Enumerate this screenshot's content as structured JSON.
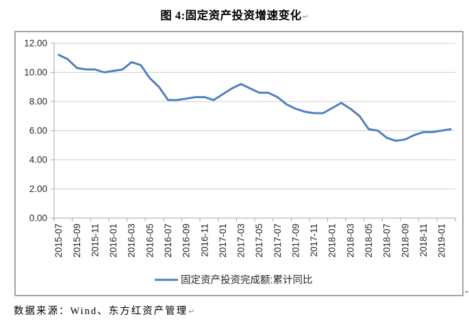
{
  "title": {
    "text": "图 4:固定资产投资增速变化",
    "paragraph_mark": "↵"
  },
  "chart_frame": {
    "paragraph_mark": "↵"
  },
  "footer": {
    "source": "数据来源：Wind、东方红资产管理",
    "paragraph_mark": "↵"
  },
  "chart_data": {
    "type": "line",
    "title": "图 4:固定资产投资增速变化",
    "xlabel": "",
    "ylabel": "",
    "ylim": [
      0,
      12
    ],
    "grid": "horizontal",
    "legend_position": "bottom",
    "x": [
      "2015-07",
      "2015-08",
      "2015-09",
      "2015-10",
      "2015-11",
      "2015-12",
      "2016-01",
      "2016-02",
      "2016-03",
      "2016-04",
      "2016-05",
      "2016-06",
      "2016-07",
      "2016-08",
      "2016-09",
      "2016-10",
      "2016-11",
      "2016-12",
      "2017-01",
      "2017-02",
      "2017-03",
      "2017-04",
      "2017-05",
      "2017-06",
      "2017-07",
      "2017-08",
      "2017-09",
      "2017-10",
      "2017-11",
      "2017-12",
      "2018-01",
      "2018-02",
      "2018-03",
      "2018-04",
      "2018-05",
      "2018-06",
      "2018-07",
      "2018-08",
      "2018-09",
      "2018-10",
      "2018-11",
      "2018-12",
      "2019-01",
      "2019-02"
    ],
    "series": [
      {
        "name": "固定资产投资完成额:累计同比",
        "color": "#4F81BD",
        "values": [
          11.2,
          10.9,
          10.3,
          10.2,
          10.2,
          10.0,
          10.1,
          10.2,
          10.7,
          10.5,
          9.6,
          9.0,
          8.1,
          8.1,
          8.2,
          8.3,
          8.3,
          8.1,
          8.5,
          8.9,
          9.2,
          8.9,
          8.6,
          8.6,
          8.3,
          7.8,
          7.5,
          7.3,
          7.2,
          7.2,
          7.55,
          7.9,
          7.5,
          7.0,
          6.1,
          6.0,
          5.5,
          5.3,
          5.4,
          5.7,
          5.9,
          5.9,
          6.0,
          6.1
        ]
      }
    ],
    "x_tick_labels": [
      "2015-07",
      "2015-09",
      "2015-11",
      "2016-01",
      "2016-03",
      "2016-05",
      "2016-07",
      "2016-09",
      "2016-11",
      "2017-01",
      "2017-03",
      "2017-05",
      "2017-07",
      "2017-09",
      "2017-11",
      "2018-01",
      "2018-03",
      "2018-05",
      "2018-07",
      "2018-09",
      "2018-11",
      "2019-01"
    ],
    "x_tick_every": 2,
    "yticks": [
      {
        "v": 0,
        "label": "0.00"
      },
      {
        "v": 2,
        "label": "2.00"
      },
      {
        "v": 4,
        "label": "4.00"
      },
      {
        "v": 6,
        "label": "6.00"
      },
      {
        "v": 8,
        "label": "8.00"
      },
      {
        "v": 10,
        "label": "10.00"
      },
      {
        "v": 12,
        "label": "12.00"
      }
    ],
    "colors": {
      "gridline": "#CDCDCD",
      "axis": "#A6A6A6",
      "label": "#262626"
    }
  }
}
